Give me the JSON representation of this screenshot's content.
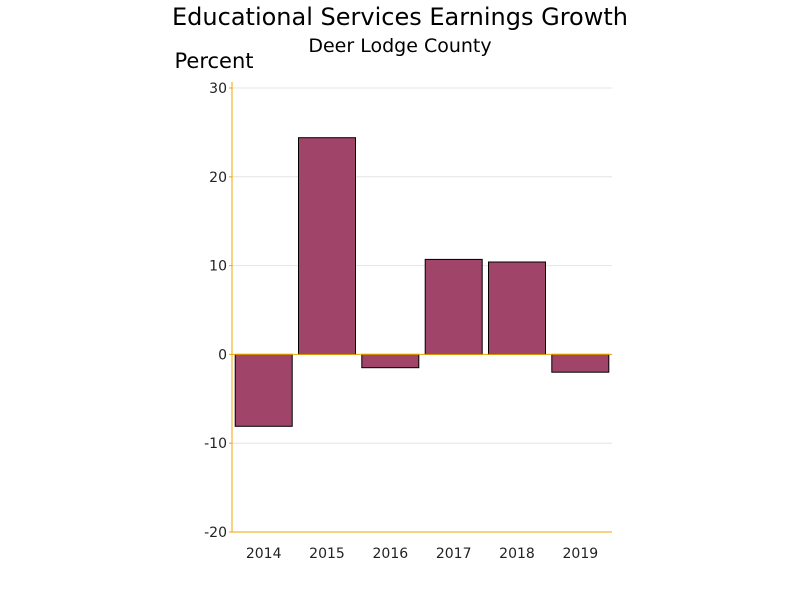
{
  "chart_data": {
    "type": "bar",
    "title": "Educational Services Earnings Growth",
    "subtitle": "Deer Lodge County",
    "ylabel": "Percent",
    "xlabel": "",
    "categories": [
      "2014",
      "2015",
      "2016",
      "2017",
      "2018",
      "2019"
    ],
    "values": [
      -8.1,
      24.4,
      -1.5,
      10.7,
      10.4,
      -2.0
    ],
    "ylim": [
      -20,
      30
    ],
    "yticks": [
      30,
      20,
      10,
      0,
      -10,
      -20
    ],
    "grid": true,
    "legend": "none",
    "bar_color": "#a0446a",
    "bar_edge_color": "#000000",
    "axis_color": "#f0a500",
    "grid_color": "#e4e4e4"
  }
}
